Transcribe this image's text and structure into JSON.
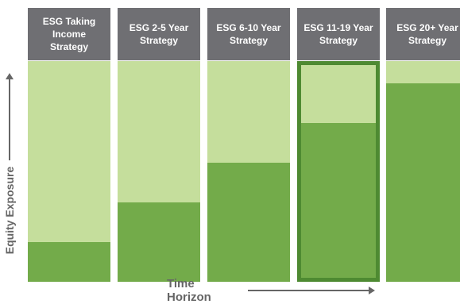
{
  "chart_data": {
    "type": "bar",
    "categories": [
      "ESG Taking Income Strategy",
      "ESG 2-5 Year Strategy",
      "ESG 6-10 Year Strategy",
      "ESG 11-19 Year Strategy",
      "ESG 20+ Year Strategy"
    ],
    "header_lines": [
      [
        "ESG Taking",
        "Income Strategy"
      ],
      [
        "ESG 2-5 Year",
        "Strategy"
      ],
      [
        "ESG 6-10 Year",
        "Strategy"
      ],
      [
        "ESG 11-19 Year",
        "Strategy"
      ],
      [
        "ESG 20+ Year",
        "Strategy"
      ]
    ],
    "series": [
      {
        "values": [
          18,
          36,
          54,
          72,
          90
        ]
      }
    ],
    "xlabel": "Time Horizon",
    "ylabel": "Equity Exposure",
    "ylim": [
      0,
      100
    ],
    "highlighted_category": "ESG 11-19 Year Strategy",
    "grid": false,
    "colors": {
      "header": "#6f6f73",
      "unfilled": "#c5de9c",
      "equity": "#73ab4a",
      "highlight_border": "#4e8a32",
      "axis_text": "#666666"
    }
  }
}
